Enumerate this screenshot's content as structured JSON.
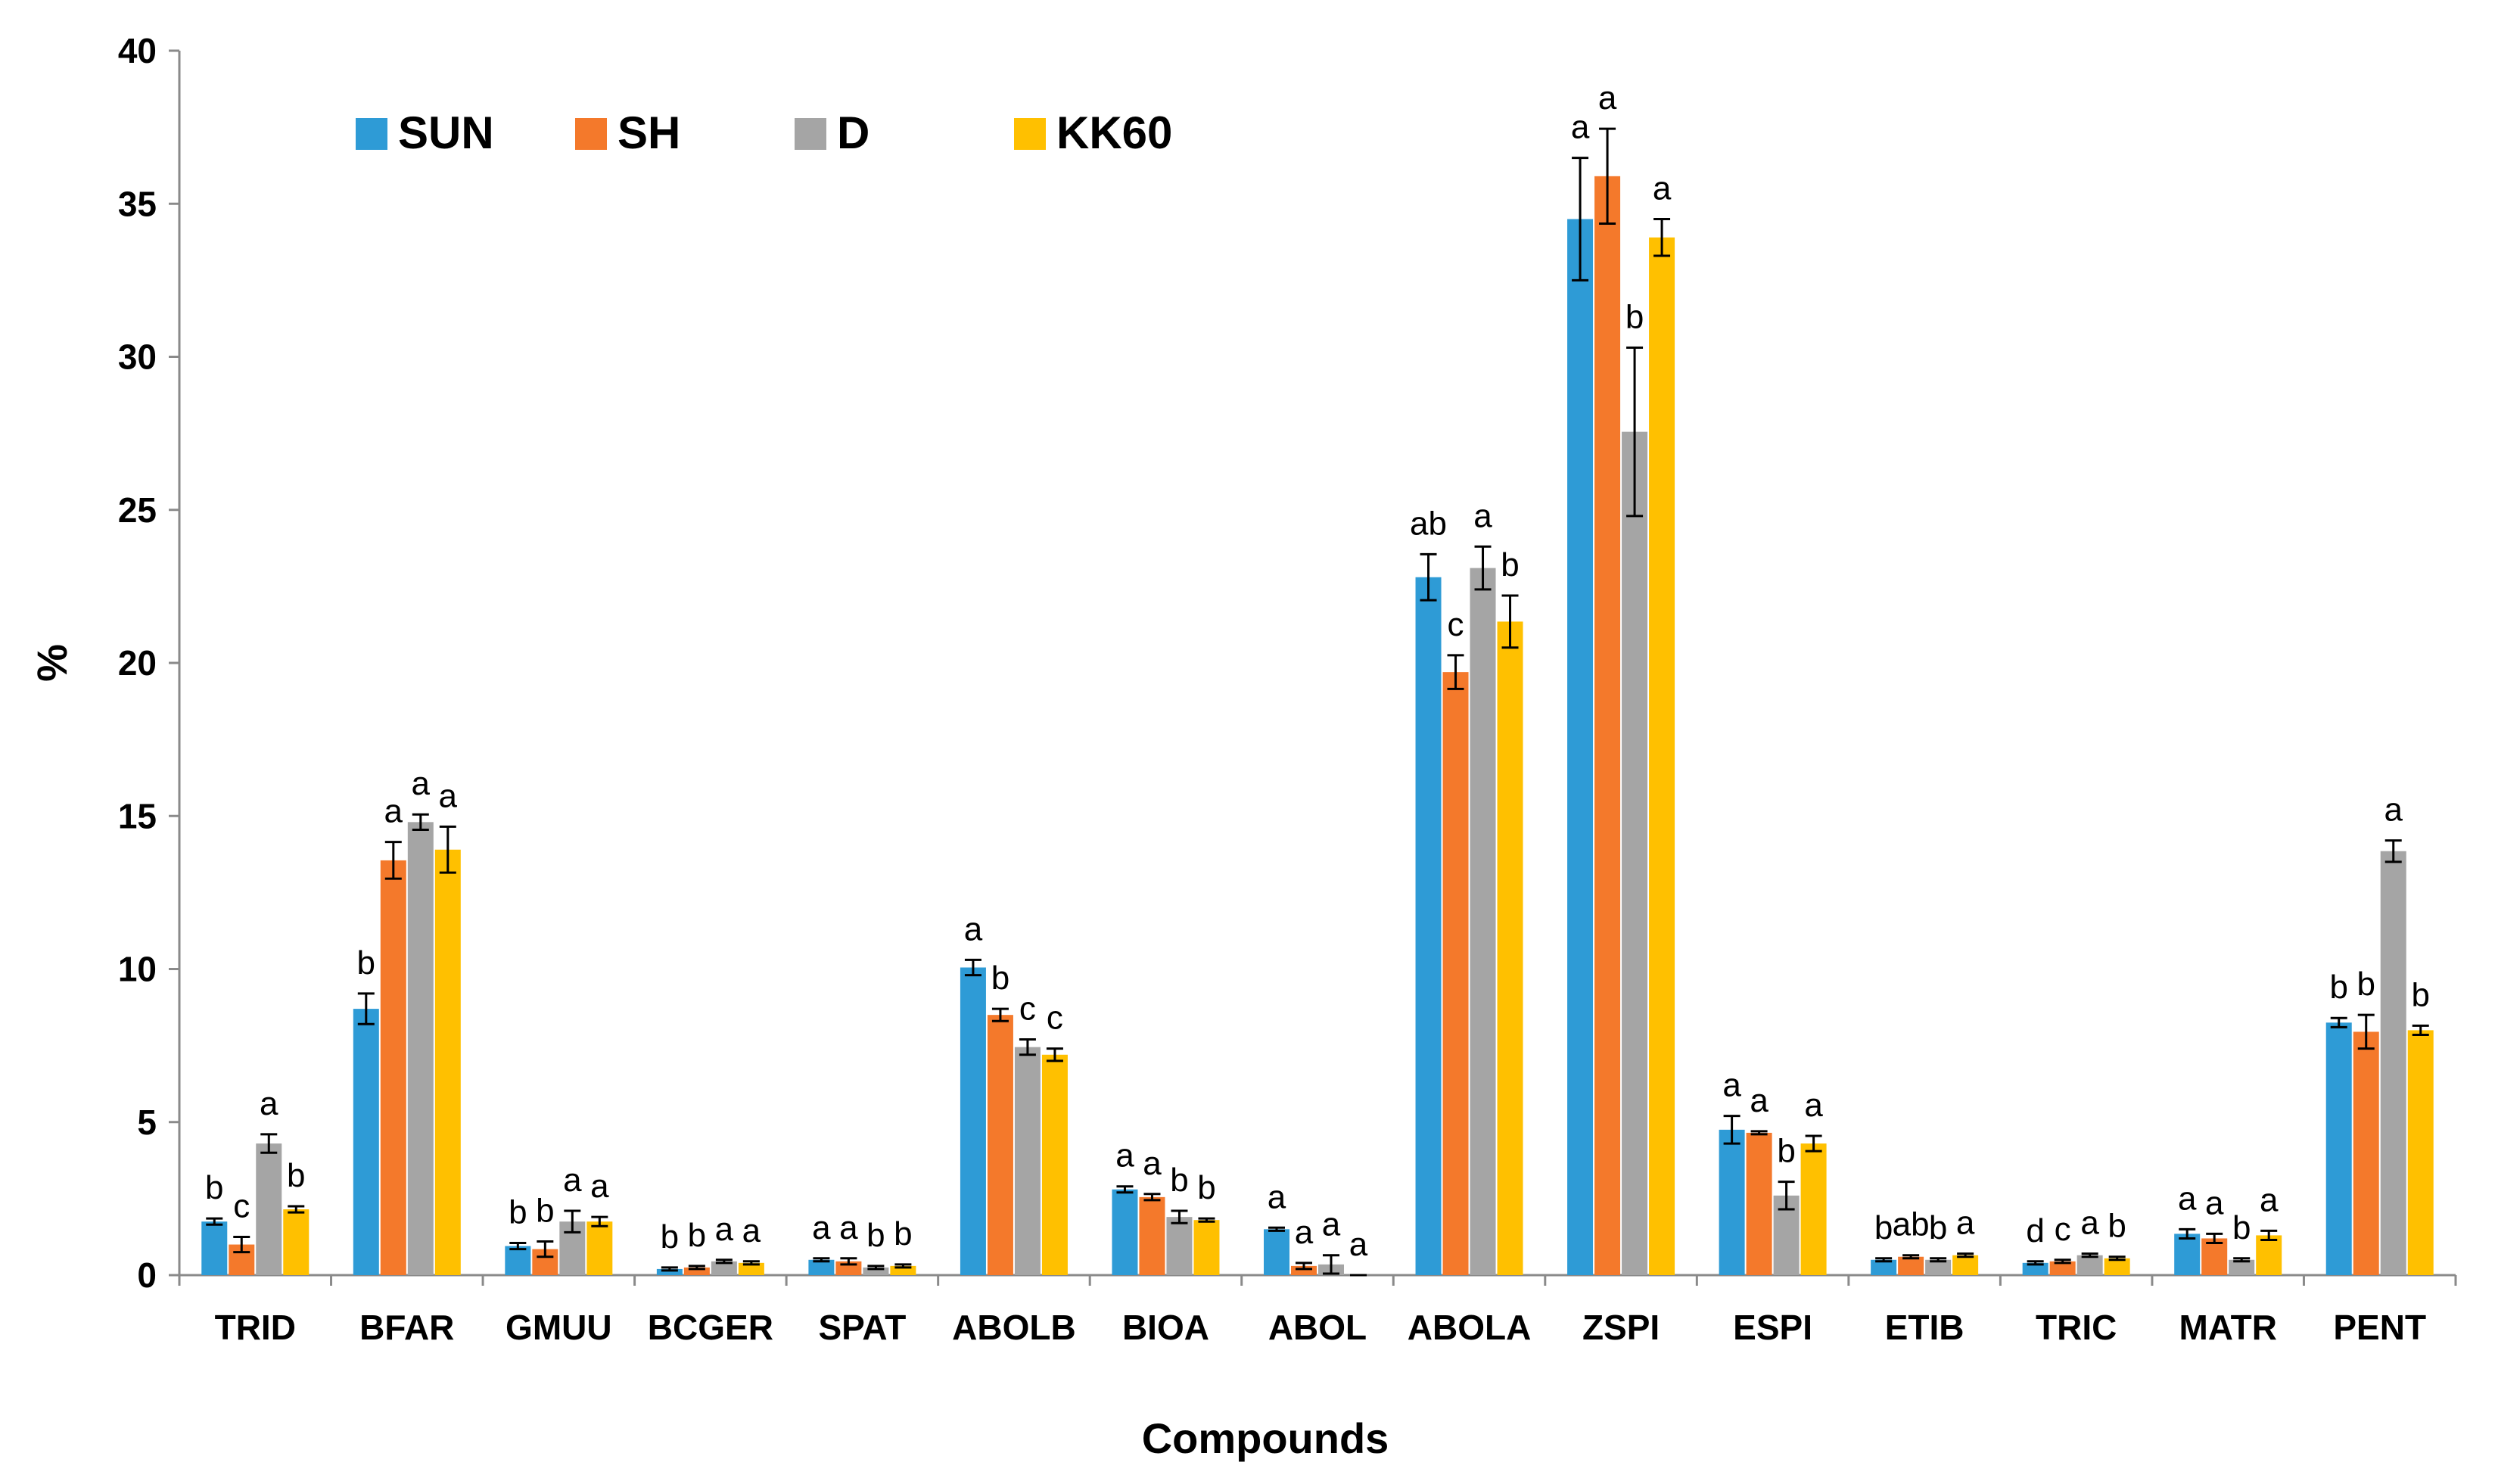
{
  "chart_data": {
    "type": "bar",
    "title": "",
    "xlabel": "Compounds",
    "ylabel": "%",
    "ylim": [
      0,
      40
    ],
    "yticks": [
      0,
      5,
      10,
      15,
      20,
      25,
      30,
      35,
      40
    ],
    "grid": false,
    "legend_position": "top-left",
    "categories": [
      "TRID",
      "BFAR",
      "GMUU",
      "BCGER",
      "SPAT",
      "ABOLB",
      "BIOA",
      "ABOL",
      "ABOLA",
      "ZSPI",
      "ESPI",
      "ETIB",
      "TRIC",
      "MATR",
      "PENT"
    ],
    "series": [
      {
        "name": "SUN",
        "color": "#2E9BD6",
        "values": [
          1.75,
          8.7,
          0.95,
          0.2,
          0.5,
          10.05,
          2.8,
          1.5,
          22.8,
          34.5,
          4.75,
          0.5,
          0.4,
          1.35,
          8.25
        ],
        "errors": [
          0.1,
          0.5,
          0.1,
          0.05,
          0.05,
          0.25,
          0.1,
          0.05,
          0.75,
          2.0,
          0.45,
          0.05,
          0.05,
          0.15,
          0.15
        ],
        "labels": [
          "b",
          "b",
          "b",
          "b",
          "a",
          "a",
          "a",
          "a",
          "ab",
          "a",
          "a",
          "b",
          "d",
          "a",
          "b"
        ]
      },
      {
        "name": "SH",
        "color": "#F4792B",
        "values": [
          1.0,
          13.55,
          0.85,
          0.25,
          0.45,
          8.5,
          2.55,
          0.3,
          19.7,
          35.9,
          4.65,
          0.6,
          0.45,
          1.2,
          7.95
        ],
        "errors": [
          0.25,
          0.6,
          0.25,
          0.05,
          0.1,
          0.2,
          0.1,
          0.1,
          0.55,
          1.55,
          0.05,
          0.05,
          0.05,
          0.15,
          0.55
        ],
        "labels": [
          "c",
          "a",
          "b",
          "b",
          "a",
          "b",
          "a",
          "a",
          "c",
          "a",
          "a",
          "ab",
          "c",
          "a",
          "b"
        ]
      },
      {
        "name": "D",
        "color": "#A5A5A5",
        "values": [
          4.3,
          14.8,
          1.75,
          0.45,
          0.25,
          7.45,
          1.9,
          0.35,
          23.1,
          27.55,
          2.6,
          0.5,
          0.65,
          0.5,
          13.85
        ],
        "errors": [
          0.3,
          0.25,
          0.35,
          0.05,
          0.05,
          0.25,
          0.2,
          0.3,
          0.7,
          2.75,
          0.45,
          0.05,
          0.05,
          0.05,
          0.35
        ],
        "labels": [
          "a",
          "a",
          "a",
          "a",
          "b",
          "c",
          "b",
          "a",
          "a",
          "b",
          "b",
          "b",
          "a",
          "b",
          "a"
        ]
      },
      {
        "name": "KK60",
        "color": "#FFC000",
        "values": [
          2.15,
          13.9,
          1.75,
          0.4,
          0.3,
          7.2,
          1.8,
          0.0,
          21.35,
          33.9,
          4.3,
          0.65,
          0.55,
          1.3,
          8.0
        ],
        "errors": [
          0.1,
          0.75,
          0.15,
          0.05,
          0.05,
          0.2,
          0.05,
          0.0,
          0.85,
          0.6,
          0.25,
          0.05,
          0.05,
          0.15,
          0.15
        ],
        "labels": [
          "b",
          "a",
          "a",
          "a",
          "b",
          "c",
          "b",
          "a",
          "b",
          "a",
          "a",
          "a",
          "b",
          "a",
          "b"
        ]
      }
    ]
  }
}
